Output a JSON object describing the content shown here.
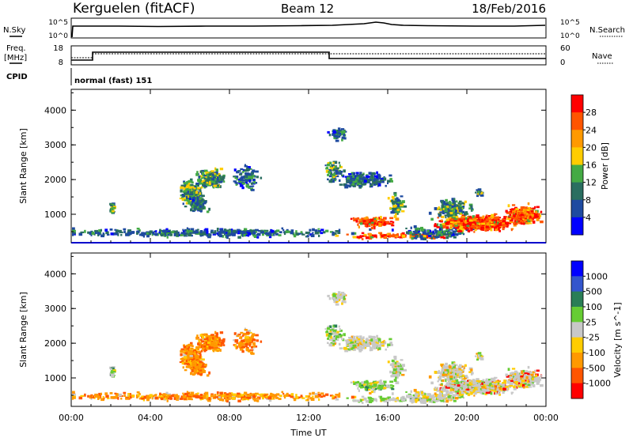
{
  "header": {
    "station": "Kerguelen (fitACF)",
    "beam": "Beam 12",
    "date": "18/Feb/2016"
  },
  "noise_panel": {
    "left_label": "N.Sky",
    "left_ticks": [
      "10^5",
      "10^0"
    ],
    "right_ticks": [
      "10^5",
      "10^0"
    ],
    "right_label": "N.Search"
  },
  "freq_panel": {
    "left_label_1": "Freq.",
    "left_label_2": "[MHz]",
    "left_ticks": [
      "18",
      "8"
    ],
    "right_ticks": [
      "60",
      "0"
    ],
    "right_label": "Nave"
  },
  "cpid": {
    "label": "CPID",
    "mode": "normal (fast) 151"
  },
  "chart_data": [
    {
      "type": "heatmap",
      "name": "power",
      "ylabel": "Slant Range [km]",
      "ylim": [
        180,
        4600
      ],
      "xlim": [
        0,
        24
      ],
      "yticks": [
        {
          "v": 1000,
          "label": "1000"
        },
        {
          "v": 2000,
          "label": "2000"
        },
        {
          "v": 3000,
          "label": "3000"
        },
        {
          "v": 4000,
          "label": "4000"
        }
      ],
      "colorbar": {
        "label": "Power [dB]",
        "levels": [
          {
            "color": "#ff0000",
            "label": "28"
          },
          {
            "color": "#ff5500",
            "label": "24"
          },
          {
            "color": "#ff9900",
            "label": "20"
          },
          {
            "color": "#ffcc00",
            "label": "16"
          },
          {
            "color": "#44aa44",
            "label": "12"
          },
          {
            "color": "#2a6e60",
            "label": "8"
          },
          {
            "color": "#1e4aa0",
            "label": "4"
          },
          {
            "color": "#0000ff",
            "label": ""
          }
        ]
      }
    },
    {
      "type": "heatmap",
      "name": "velocity",
      "ylabel": "Slant Range [km]",
      "ylim": [
        180,
        4600
      ],
      "xlim": [
        0,
        24
      ],
      "xlabel": "Time UT",
      "yticks": [
        {
          "v": 1000,
          "label": "1000"
        },
        {
          "v": 2000,
          "label": "2000"
        },
        {
          "v": 3000,
          "label": "3000"
        },
        {
          "v": 4000,
          "label": "4000"
        }
      ],
      "xticks": [
        {
          "v": 0,
          "label": "00:00"
        },
        {
          "v": 4,
          "label": "04:00"
        },
        {
          "v": 8,
          "label": "08:00"
        },
        {
          "v": 12,
          "label": "12:00"
        },
        {
          "v": 16,
          "label": "16:00"
        },
        {
          "v": 20,
          "label": "20:00"
        },
        {
          "v": 24,
          "label": "00:00"
        }
      ],
      "colorbar": {
        "label": "Velocity [m s^-1]",
        "levels": [
          {
            "color": "#0000ff",
            "label": "1000"
          },
          {
            "color": "#3355cc",
            "label": "500"
          },
          {
            "color": "#2a7e56",
            "label": "100"
          },
          {
            "color": "#66cc33",
            "label": "25"
          },
          {
            "color": "#c8c8c8",
            "label": "-25"
          },
          {
            "color": "#ffcc00",
            "label": "-100"
          },
          {
            "color": "#ff9900",
            "label": "-500"
          },
          {
            "color": "#ff5500",
            "label": "-1000"
          },
          {
            "color": "#ff0000",
            "label": ""
          }
        ]
      }
    }
  ]
}
